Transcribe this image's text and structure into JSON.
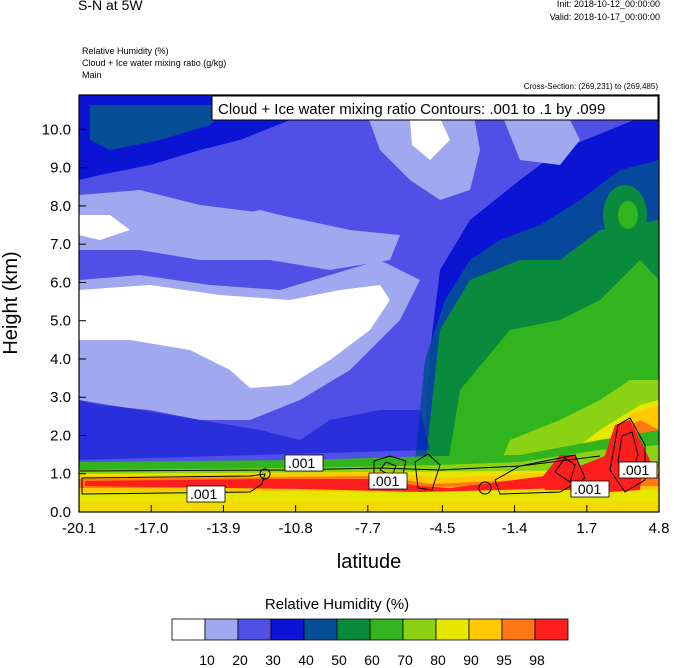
{
  "header": {
    "title": "S-N at 5W",
    "init": "Init: 2018-10-12_00:00:00",
    "valid": "Valid: 2018-10-17_00:00:00",
    "field1": "Relative Humidity   (%)",
    "field2": "Cloud + Ice water mixing ratio   (g/kg)",
    "field3": "Main",
    "cross_section": "Cross-Section: (269,231) to (269,485)"
  },
  "contour_info": "Cloud + Ice water mixing ratio Contours: .001 to .1 by .099",
  "contour_labels": [
    ".001",
    ".001",
    ".001",
    ".001",
    ".001",
    ".001"
  ],
  "colorbar": {
    "title": "Relative Humidity  (%)",
    "colors": [
      "#ffffff",
      "#a0a8f0",
      "#5050e6",
      "#0a14d2",
      "#064f96",
      "#0a8a3c",
      "#32b41e",
      "#8cd214",
      "#e6e600",
      "#ffc800",
      "#ff7814",
      "#ff1e1e"
    ],
    "labels": [
      "10",
      "20",
      "30",
      "40",
      "50",
      "60",
      "70",
      "80",
      "90",
      "95",
      "98"
    ]
  },
  "chart_data": {
    "type": "heatmap",
    "xlabel": "latitude",
    "ylabel": "Height (km)",
    "x_ticks": [
      "-20.1",
      "-17.0",
      "-13.9",
      "-10.8",
      "-7.7",
      "-4.5",
      "-1.4",
      "1.7",
      "4.8"
    ],
    "y_ticks": [
      "0.0",
      "1.0",
      "2.0",
      "3.0",
      "4.0",
      "5.0",
      "6.0",
      "7.0",
      "8.0",
      "9.0",
      "10.0"
    ],
    "xlim": [
      -20.1,
      4.8
    ],
    "ylim": [
      0,
      10.9
    ],
    "grid": false,
    "field": "Relative Humidity (%)",
    "contour_field": "Cloud + Ice water mixing ratio (g/kg)",
    "contour_levels": [
      0.001,
      0.1
    ]
  }
}
